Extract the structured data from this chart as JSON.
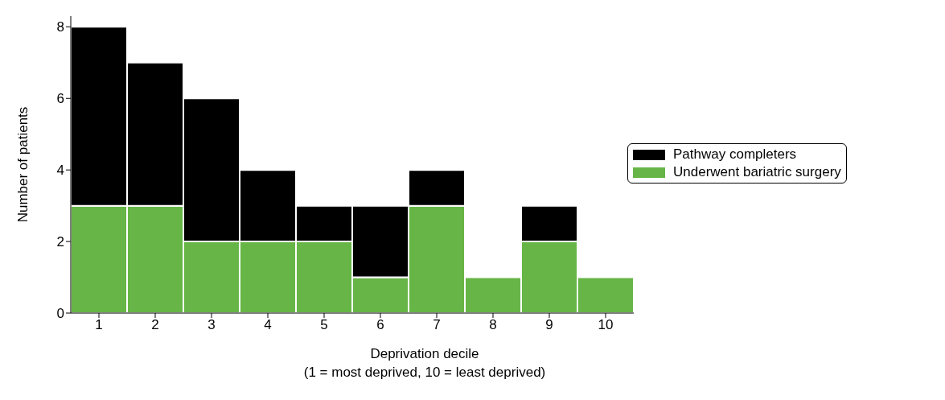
{
  "chart_data": {
    "type": "bar",
    "stacked": true,
    "xlabel": "Deprivation decile\n(1 = most deprived, 10 = least deprived)",
    "ylabel": "Number of patients",
    "categories": [
      "1",
      "2",
      "3",
      "4",
      "5",
      "6",
      "7",
      "8",
      "9",
      "10"
    ],
    "series": [
      {
        "name": "Underwent bariatric surgery",
        "color": "#66b546",
        "values": [
          3,
          3,
          2,
          2,
          2,
          1,
          3,
          1,
          2,
          1
        ]
      },
      {
        "name": "Pathway completers",
        "color": "#000000",
        "values": [
          5,
          4,
          4,
          2,
          1,
          2,
          1,
          0,
          1,
          0
        ]
      }
    ],
    "ylim": [
      0,
      8.3
    ],
    "yticks": [
      0,
      2,
      4,
      6,
      8
    ],
    "grid": false,
    "legend": "right"
  }
}
